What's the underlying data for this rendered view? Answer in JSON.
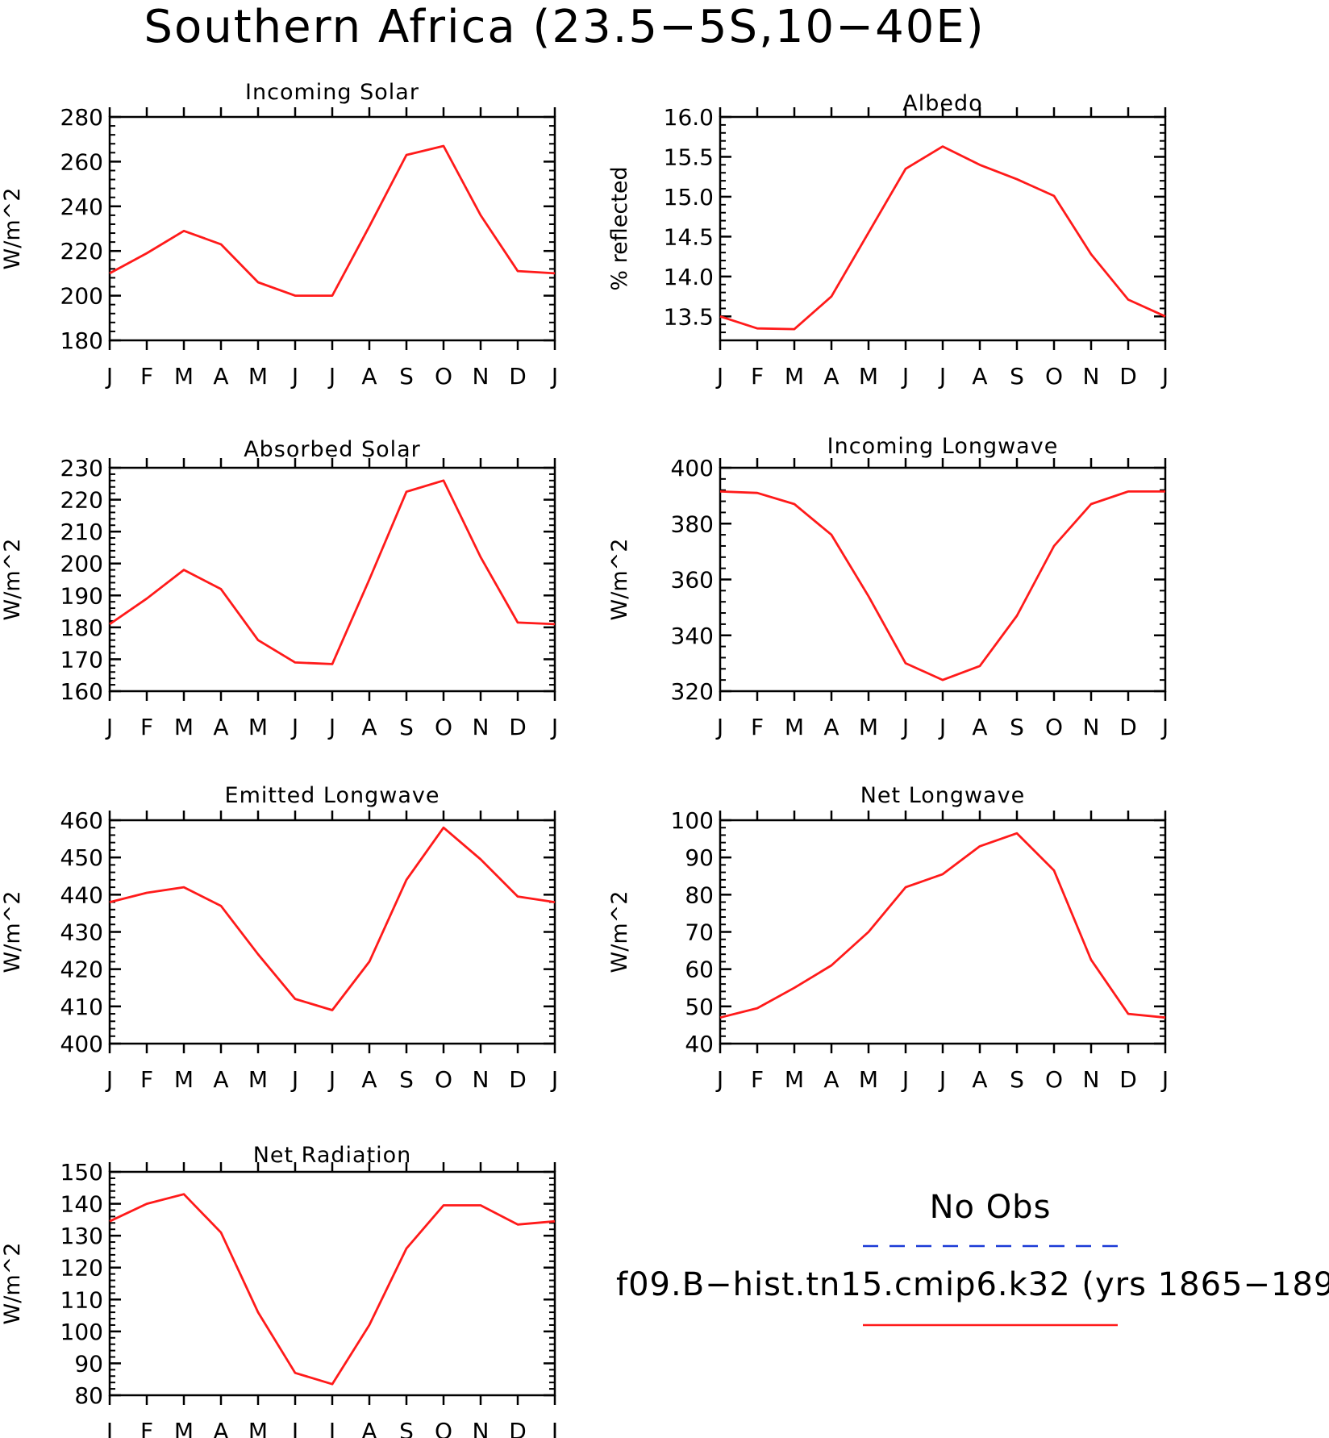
{
  "figure": {
    "title": "Southern Africa (23.5−5S,10−40E)"
  },
  "colors": {
    "model_line": "#ff1a1a",
    "obs_line": "#1a3ad6",
    "axes": "#000000"
  },
  "legend": {
    "obs_label": "No Obs",
    "model_label": "f09.B−hist.tn15.cmip6.k32 (yrs 1865−189"
  },
  "chart_data": [
    {
      "type": "line",
      "title": "Incoming Solar",
      "ylabel": "W/m^2",
      "categories": [
        "J",
        "F",
        "M",
        "A",
        "M",
        "J",
        "J",
        "A",
        "S",
        "O",
        "N",
        "D",
        "J"
      ],
      "ylim": [
        180,
        280
      ],
      "yticks": [
        "180",
        "200",
        "220",
        "240",
        "260",
        "280"
      ],
      "series": [
        {
          "values": [
            210,
            219,
            229,
            223,
            206,
            200,
            200,
            231,
            263,
            267,
            236,
            211,
            210
          ]
        }
      ]
    },
    {
      "type": "line",
      "title": "Albedo",
      "ylabel": "% reflected",
      "categories": [
        "J",
        "F",
        "M",
        "A",
        "M",
        "J",
        "J",
        "A",
        "S",
        "O",
        "N",
        "D",
        "J"
      ],
      "ylim": [
        13.2,
        16.0
      ],
      "yticks": [
        "13.5",
        "14.0",
        "14.5",
        "15.0",
        "15.5",
        "16.0"
      ],
      "series": [
        {
          "values": [
            13.5,
            13.35,
            13.34,
            13.75,
            14.55,
            15.35,
            15.63,
            15.4,
            15.22,
            15.01,
            14.28,
            13.71,
            13.5
          ]
        }
      ]
    },
    {
      "type": "line",
      "title": "Absorbed Solar",
      "ylabel": "W/m^2",
      "categories": [
        "J",
        "F",
        "M",
        "A",
        "M",
        "J",
        "J",
        "A",
        "S",
        "O",
        "N",
        "D",
        "J"
      ],
      "ylim": [
        160,
        230
      ],
      "yticks": [
        "160",
        "170",
        "180",
        "190",
        "200",
        "210",
        "220",
        "230"
      ],
      "series": [
        {
          "values": [
            181,
            189,
            198,
            192,
            176,
            169,
            168.5,
            195,
            222.5,
            226,
            202,
            181.5,
            181
          ]
        }
      ]
    },
    {
      "type": "line",
      "title": "Incoming Longwave",
      "ylabel": "W/m^2",
      "categories": [
        "J",
        "F",
        "M",
        "A",
        "M",
        "J",
        "J",
        "A",
        "S",
        "O",
        "N",
        "D",
        "J"
      ],
      "ylim": [
        320,
        400
      ],
      "yticks": [
        "320",
        "340",
        "360",
        "380",
        "400"
      ],
      "series": [
        {
          "values": [
            391.5,
            391,
            387,
            376,
            354,
            330,
            324,
            329,
            347,
            372,
            387,
            391.5,
            391.5
          ]
        }
      ]
    },
    {
      "type": "line",
      "title": "Emitted Longwave",
      "ylabel": "W/m^2",
      "categories": [
        "J",
        "F",
        "M",
        "A",
        "M",
        "J",
        "J",
        "A",
        "S",
        "O",
        "N",
        "D",
        "J"
      ],
      "ylim": [
        400,
        460
      ],
      "yticks": [
        "400",
        "410",
        "420",
        "430",
        "440",
        "450",
        "460"
      ],
      "series": [
        {
          "values": [
            438,
            440.5,
            442,
            437,
            424,
            412,
            409,
            422,
            444,
            458,
            449.5,
            439.5,
            438
          ]
        }
      ]
    },
    {
      "type": "line",
      "title": "Net Longwave",
      "ylabel": "W/m^2",
      "categories": [
        "J",
        "F",
        "M",
        "A",
        "M",
        "J",
        "J",
        "A",
        "S",
        "O",
        "N",
        "D",
        "J"
      ],
      "ylim": [
        40,
        100
      ],
      "yticks": [
        "40",
        "50",
        "60",
        "70",
        "80",
        "90",
        "100"
      ],
      "series": [
        {
          "values": [
            47,
            49.5,
            55,
            61,
            70,
            82,
            85.5,
            93,
            96.5,
            86.5,
            62.5,
            48,
            47
          ]
        }
      ]
    },
    {
      "type": "line",
      "title": "Net Radiation",
      "ylabel": "W/m^2",
      "categories": [
        "J",
        "F",
        "M",
        "A",
        "M",
        "J",
        "J",
        "A",
        "S",
        "O",
        "N",
        "D",
        "J"
      ],
      "ylim": [
        80,
        150
      ],
      "yticks": [
        "80",
        "90",
        "100",
        "110",
        "120",
        "130",
        "140",
        "150"
      ],
      "series": [
        {
          "values": [
            134.5,
            140,
            143,
            131,
            106,
            87,
            83.5,
            102,
            126,
            139.5,
            139.5,
            133.5,
            134.5
          ]
        }
      ]
    }
  ]
}
